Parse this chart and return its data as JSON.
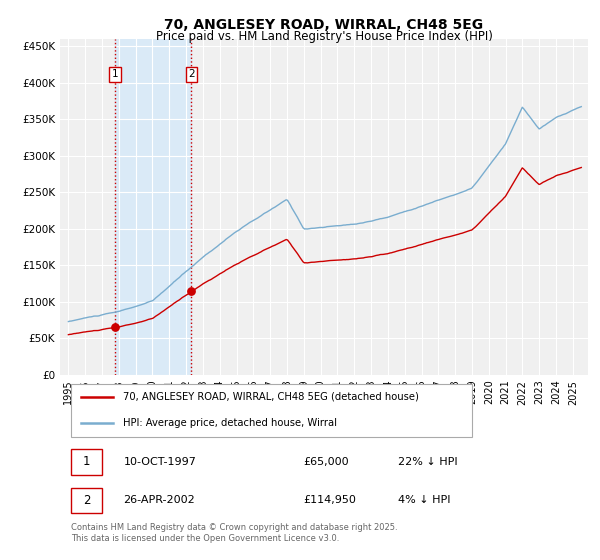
{
  "title": "70, ANGLESEY ROAD, WIRRAL, CH48 5EG",
  "subtitle": "Price paid vs. HM Land Registry's House Price Index (HPI)",
  "footer": "Contains HM Land Registry data © Crown copyright and database right 2025.\nThis data is licensed under the Open Government Licence v3.0.",
  "legend_entry1": "70, ANGLESEY ROAD, WIRRAL, CH48 5EG (detached house)",
  "legend_entry2": "HPI: Average price, detached house, Wirral",
  "sale1_label": "1",
  "sale1_date": "10-OCT-1997",
  "sale1_price": "£65,000",
  "sale1_hpi": "22% ↓ HPI",
  "sale1_year": 1997.78,
  "sale1_value": 65000,
  "sale2_label": "2",
  "sale2_date": "26-APR-2002",
  "sale2_price": "£114,950",
  "sale2_hpi": "4% ↓ HPI",
  "sale2_year": 2002.32,
  "sale2_value": 114950,
  "line_color_red": "#cc0000",
  "line_color_blue": "#7aadcf",
  "vline_color": "#cc0000",
  "shade_color": "#daeaf7",
  "ylim": [
    0,
    460000
  ],
  "yticks": [
    0,
    50000,
    100000,
    150000,
    200000,
    250000,
    300000,
    350000,
    400000,
    450000
  ],
  "background_color": "#ffffff",
  "plot_bg_color": "#f0f0f0"
}
